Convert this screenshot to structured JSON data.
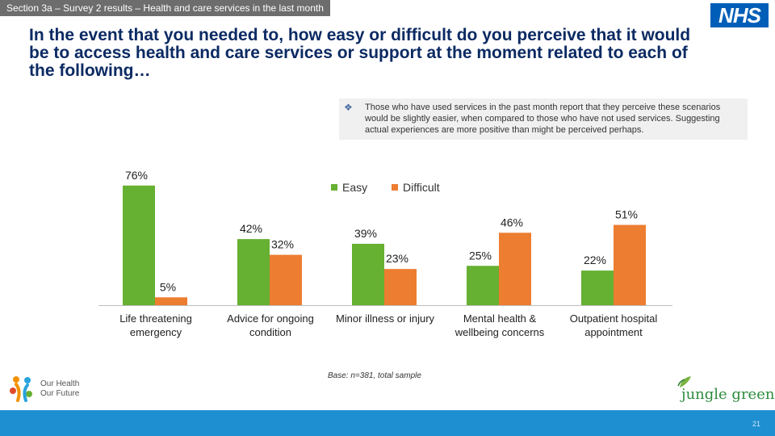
{
  "header": {
    "section_tag": "Section 3a – Survey 2 results – Health and care services in the last month",
    "logo_text": "NHS",
    "title": "In the event that you needed to, how easy or difficult do you perceive that it would be to access health and care services or support at the moment related to each of the following…"
  },
  "note": {
    "bullet": "❖",
    "text": "Those who have used services in the past month report that they perceive these scenarios would be slightly easier, when compared to those who have not used services. Suggesting actual experiences are more positive than might be perceived perhaps."
  },
  "colors": {
    "easy": "#66b032",
    "difficult": "#ed7d31",
    "title": "#0b2a63",
    "footer": "#1e8fd0"
  },
  "chart_data": {
    "type": "bar",
    "categories": [
      "Life threatening emergency",
      "Advice for ongoing condition",
      "Minor illness or injury",
      "Mental health & wellbeing concerns",
      "Outpatient hospital appointment"
    ],
    "series": [
      {
        "name": "Easy",
        "values": [
          76,
          42,
          39,
          25,
          22
        ]
      },
      {
        "name": "Difficult",
        "values": [
          5,
          32,
          23,
          46,
          51
        ]
      }
    ],
    "value_labels": {
      "Easy": [
        "76%",
        "42%",
        "39%",
        "25%",
        "22%"
      ],
      "Difficult": [
        "5%",
        "32%",
        "23%",
        "46%",
        "51%"
      ]
    },
    "ylim": [
      0,
      100
    ],
    "legend": [
      "Easy",
      "Difficult"
    ],
    "legend_position": "top-right",
    "grid": false,
    "unit": "%"
  },
  "category_labels": [
    "Life threatening emergency",
    "Advice for ongoing condition",
    "Minor illness or injury",
    "Mental health & wellbeing concerns",
    "Outpatient hospital appointment"
  ],
  "base_note": "Base: n=381, total sample",
  "footer": {
    "left_logo_line1": "Our Health",
    "left_logo_line2": "Our Future",
    "right_logo_text": "jungle green",
    "page_number": "21"
  }
}
